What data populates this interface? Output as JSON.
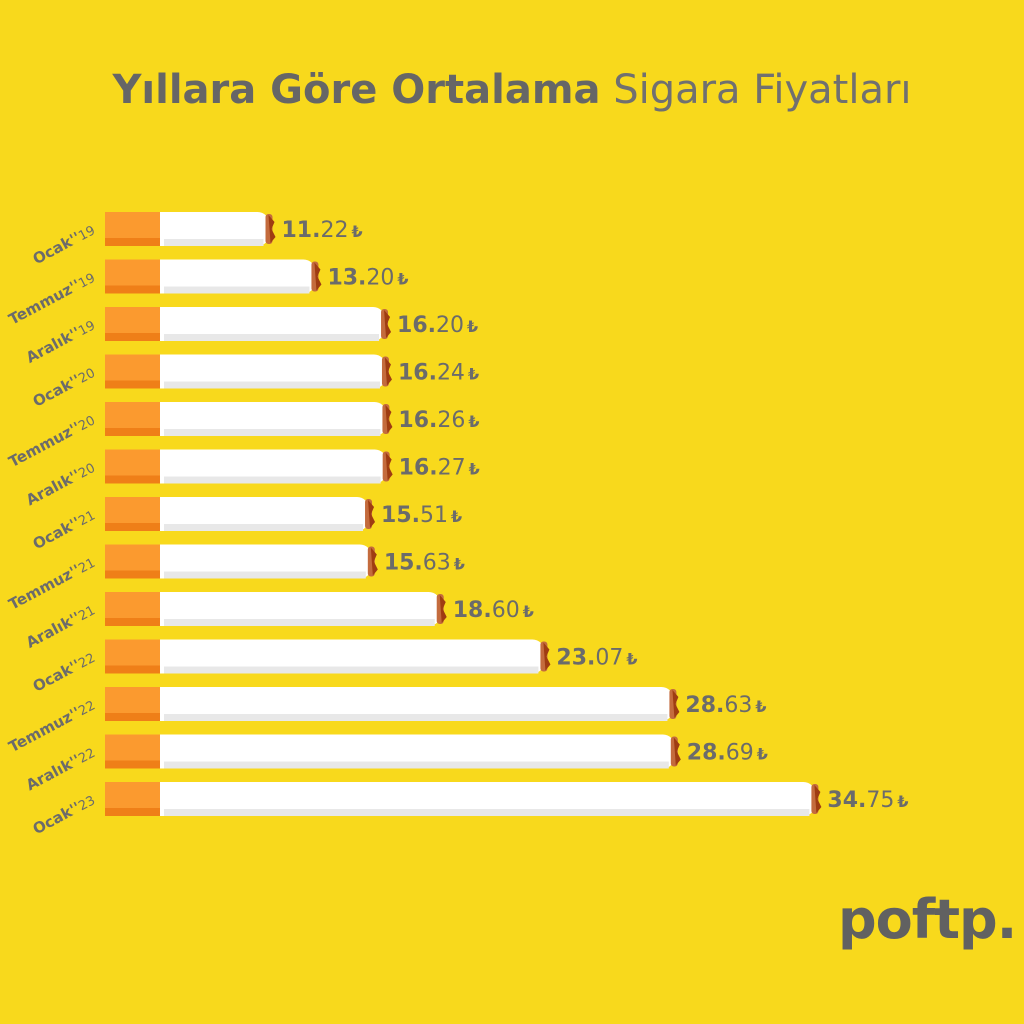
{
  "title": {
    "bold": "Yıllara Göre Ortalama",
    "light": "Sigara Fiyatları"
  },
  "logo": "poftp.",
  "colors": {
    "background": "#f8d91c",
    "filter": "#fb9a2f",
    "filter_shadow": "#ef7f18",
    "paper": "#ffffff",
    "paper_shadow": "#e8e8e8",
    "ash": "#c46b3d",
    "ember": "#9f3c12",
    "text": "#6b6b6b"
  },
  "chart_data": {
    "type": "bar",
    "orientation": "horizontal",
    "categories": [
      {
        "label": "Ocak''",
        "year": "19"
      },
      {
        "label": "Temmuz''",
        "year": "19"
      },
      {
        "label": "Aralık''",
        "year": "19"
      },
      {
        "label": "Ocak''",
        "year": "20"
      },
      {
        "label": "Temmuz''",
        "year": "20"
      },
      {
        "label": "Aralık''",
        "year": "20"
      },
      {
        "label": "Ocak''",
        "year": "21"
      },
      {
        "label": "Temmuz''",
        "year": "21"
      },
      {
        "label": "Aralık''",
        "year": "21"
      },
      {
        "label": "Ocak''",
        "year": "22"
      },
      {
        "label": "Temmuz''",
        "year": "22"
      },
      {
        "label": "Aralık''",
        "year": "22"
      },
      {
        "label": "Ocak''",
        "year": "23"
      }
    ],
    "values": [
      11.22,
      13.2,
      16.2,
      16.24,
      16.26,
      16.27,
      15.51,
      15.63,
      18.6,
      23.07,
      28.63,
      28.69,
      34.75
    ],
    "value_labels": [
      {
        "whole": "11.",
        "decimal": "22"
      },
      {
        "whole": "13.",
        "decimal": "20"
      },
      {
        "whole": "16.",
        "decimal": "20"
      },
      {
        "whole": "16.",
        "decimal": "24"
      },
      {
        "whole": "16.",
        "decimal": "26"
      },
      {
        "whole": "16.",
        "decimal": "27"
      },
      {
        "whole": "15.",
        "decimal": "51"
      },
      {
        "whole": "15.",
        "decimal": "63"
      },
      {
        "whole": "18.",
        "decimal": "60"
      },
      {
        "whole": "23.",
        "decimal": "07"
      },
      {
        "whole": "28.",
        "decimal": "63"
      },
      {
        "whole": "28.",
        "decimal": "69"
      },
      {
        "whole": "34.",
        "decimal": "75"
      }
    ],
    "currency_symbol": "₺",
    "title": "Yıllara Göre Ortalama Sigara Fiyatları",
    "xlabel": "",
    "ylabel": "",
    "grid": false,
    "legend": "none"
  }
}
